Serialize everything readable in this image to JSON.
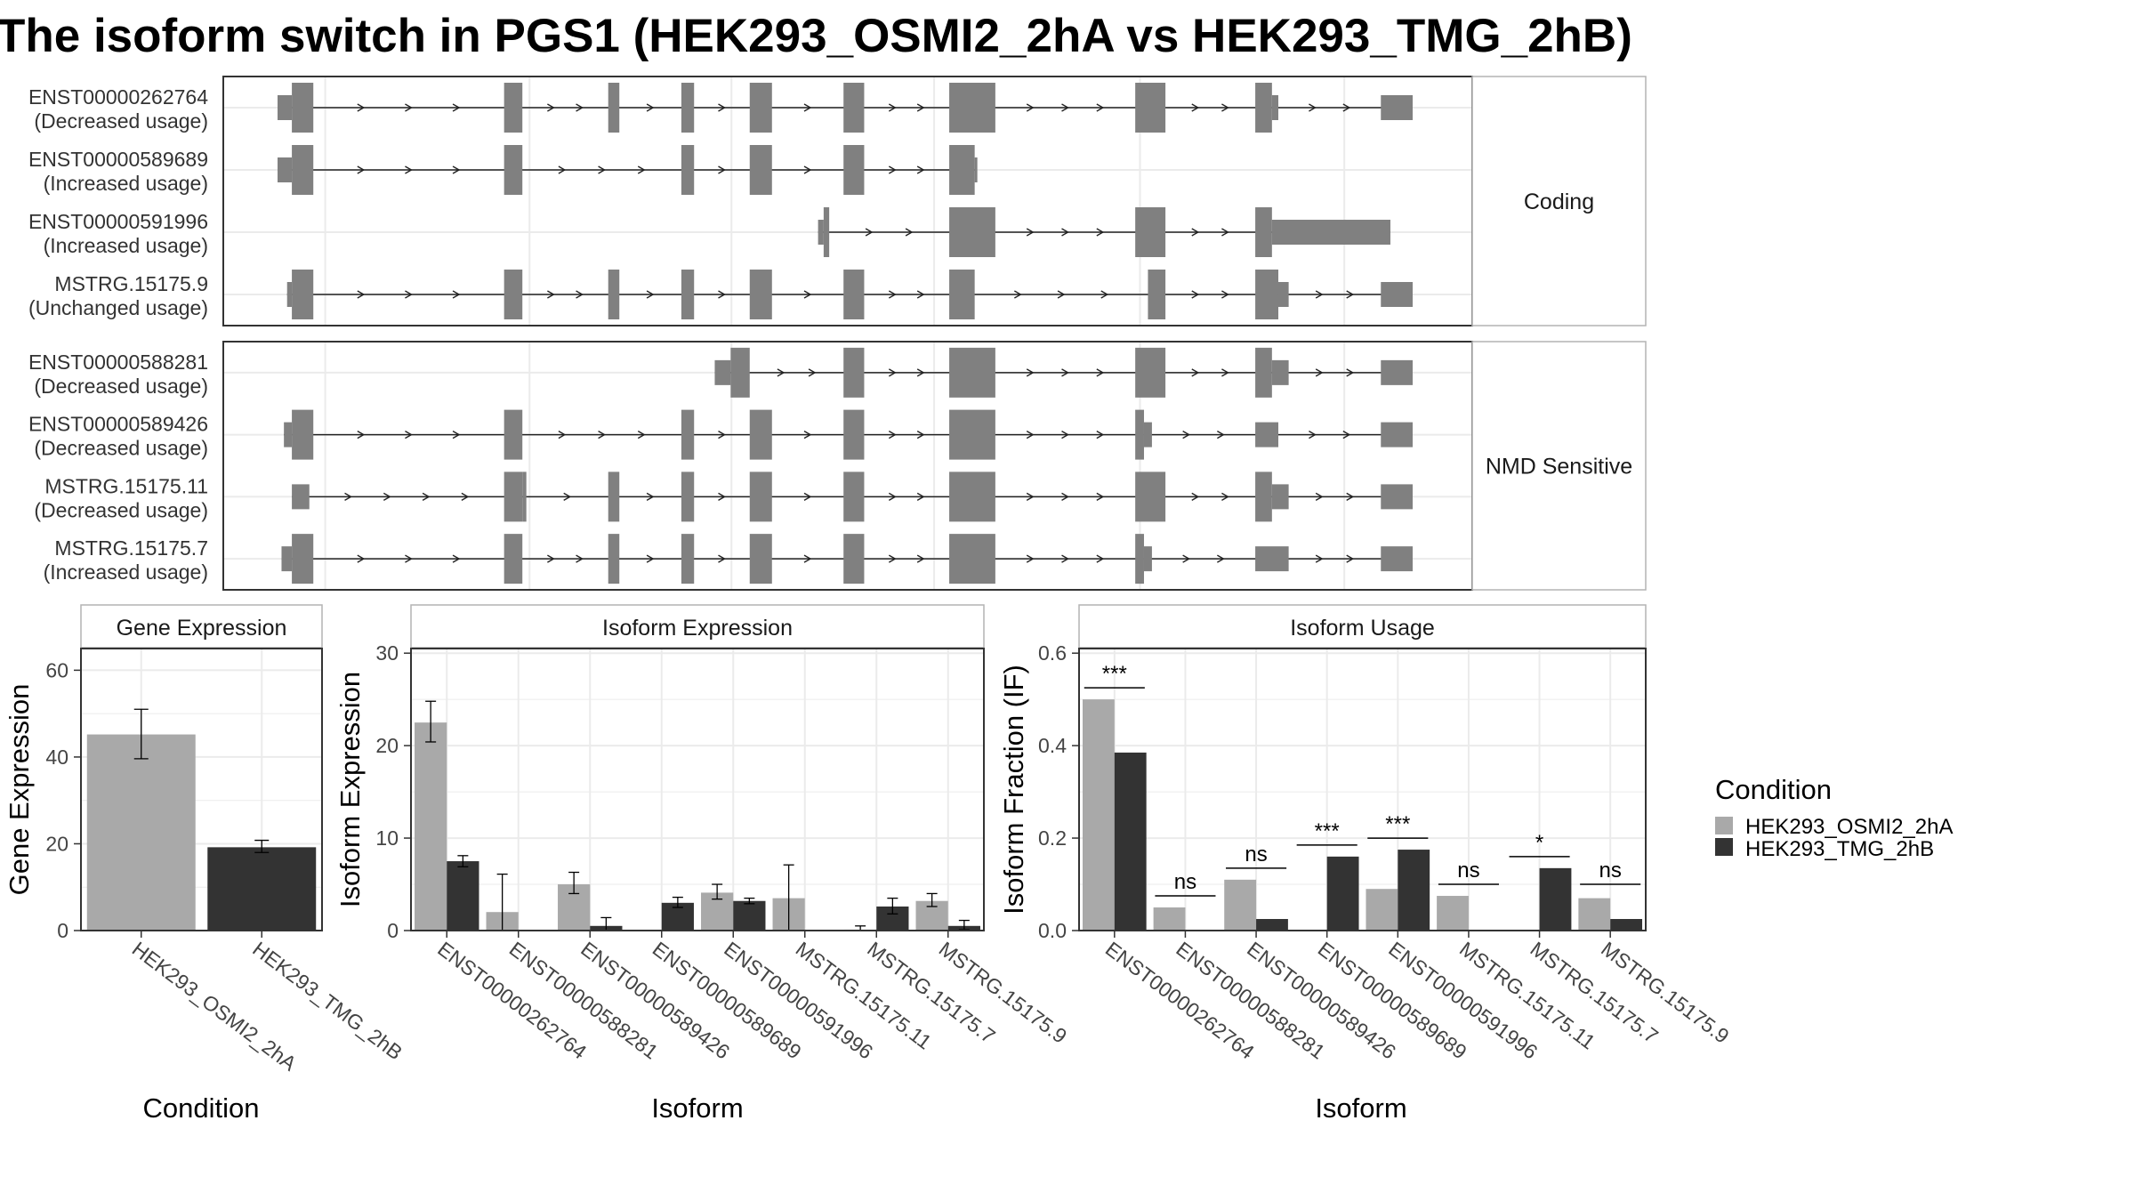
{
  "title": "The isoform switch in PGS1 (HEK293_OSMI2_2hA vs HEK293_TMG_2hB)",
  "colors": {
    "cond1": "#a9a9a9",
    "cond2": "#333333",
    "exon": "#808080",
    "grid": "#ebebeb",
    "panel_border": "#333333",
    "strip_border": "#b3b3b3"
  },
  "chart_data": [
    {
      "type": "diagram",
      "group": "Coding",
      "isoforms": [
        {
          "id": "ENST00000262764",
          "status": "(Decreased usage)",
          "exons": [
            [
              0,
              18,
              "u"
            ],
            [
              18,
              45,
              "c"
            ],
            [
              285,
              308,
              "c"
            ],
            [
              416,
              430,
              "c"
            ],
            [
              508,
              524,
              "c"
            ],
            [
              594,
              622,
              "c"
            ],
            [
              712,
              738,
              "c"
            ],
            [
              845,
              903,
              "c"
            ],
            [
              1079,
              1117,
              "c"
            ],
            [
              1230,
              1251,
              "c"
            ],
            [
              1251,
              1259,
              "u"
            ],
            [
              1388,
              1428,
              "u"
            ]
          ],
          "span": [
            0,
            1428
          ]
        },
        {
          "id": "ENST00000589689",
          "status": "(Increased usage)",
          "exons": [
            [
              0,
              18,
              "u"
            ],
            [
              18,
              45,
              "c"
            ],
            [
              285,
              308,
              "c"
            ],
            [
              508,
              524,
              "c"
            ],
            [
              594,
              622,
              "c"
            ],
            [
              712,
              738,
              "c"
            ],
            [
              845,
              877,
              "c"
            ],
            [
              877,
              880,
              "u"
            ]
          ],
          "span": [
            0,
            880
          ]
        },
        {
          "id": "ENST00000591996",
          "status": "(Increased usage)",
          "exons": [
            [
              680,
              687,
              "u"
            ],
            [
              687,
              694,
              "c"
            ],
            [
              845,
              903,
              "c"
            ],
            [
              1079,
              1117,
              "c"
            ],
            [
              1230,
              1251,
              "c"
            ],
            [
              1251,
              1400,
              "u"
            ]
          ],
          "span": [
            680,
            1400
          ]
        },
        {
          "id": "MSTRG.15175.9",
          "status": "(Unchanged usage)",
          "exons": [
            [
              12,
              18,
              "u"
            ],
            [
              18,
              45,
              "c"
            ],
            [
              285,
              308,
              "c"
            ],
            [
              416,
              430,
              "c"
            ],
            [
              508,
              524,
              "c"
            ],
            [
              594,
              622,
              "c"
            ],
            [
              712,
              738,
              "c"
            ],
            [
              845,
              877,
              "c"
            ],
            [
              1095,
              1117,
              "c"
            ],
            [
              1230,
              1259,
              "c"
            ],
            [
              1259,
              1272,
              "u"
            ],
            [
              1388,
              1428,
              "u"
            ]
          ],
          "span": [
            12,
            1428
          ]
        }
      ]
    },
    {
      "type": "diagram",
      "group": "NMD Sensitive",
      "isoforms": [
        {
          "id": "ENST00000588281",
          "status": "(Decreased usage)",
          "exons": [
            [
              550,
              570,
              "u"
            ],
            [
              570,
              594,
              "c"
            ],
            [
              712,
              738,
              "c"
            ],
            [
              845,
              903,
              "c"
            ],
            [
              1079,
              1117,
              "c"
            ],
            [
              1230,
              1251,
              "c"
            ],
            [
              1251,
              1272,
              "u"
            ],
            [
              1388,
              1428,
              "u"
            ]
          ],
          "span": [
            550,
            1428
          ]
        },
        {
          "id": "ENST00000589426",
          "status": "(Decreased usage)",
          "exons": [
            [
              8,
              18,
              "u"
            ],
            [
              18,
              45,
              "c"
            ],
            [
              285,
              308,
              "c"
            ],
            [
              508,
              524,
              "c"
            ],
            [
              594,
              622,
              "c"
            ],
            [
              712,
              738,
              "c"
            ],
            [
              845,
              903,
              "c"
            ],
            [
              1079,
              1090,
              "c"
            ],
            [
              1090,
              1100,
              "u"
            ],
            [
              1230,
              1259,
              "u"
            ],
            [
              1388,
              1428,
              "u"
            ]
          ],
          "span": [
            8,
            1428
          ]
        },
        {
          "id": "MSTRG.15175.11",
          "status": "(Decreased usage)",
          "exons": [
            [
              18,
              40,
              "u"
            ],
            [
              285,
              308,
              "c"
            ],
            [
              308,
              313,
              "c"
            ],
            [
              416,
              430,
              "c"
            ],
            [
              508,
              524,
              "c"
            ],
            [
              594,
              622,
              "c"
            ],
            [
              712,
              738,
              "c"
            ],
            [
              845,
              903,
              "c"
            ],
            [
              1079,
              1117,
              "c"
            ],
            [
              1230,
              1251,
              "c"
            ],
            [
              1251,
              1272,
              "u"
            ],
            [
              1388,
              1428,
              "u"
            ]
          ],
          "span": [
            18,
            1428
          ]
        },
        {
          "id": "MSTRG.15175.7",
          "status": "(Increased usage)",
          "exons": [
            [
              5,
              18,
              "u"
            ],
            [
              18,
              45,
              "c"
            ],
            [
              285,
              308,
              "c"
            ],
            [
              416,
              430,
              "c"
            ],
            [
              508,
              524,
              "c"
            ],
            [
              594,
              622,
              "c"
            ],
            [
              712,
              738,
              "c"
            ],
            [
              845,
              903,
              "c"
            ],
            [
              1079,
              1090,
              "c"
            ],
            [
              1090,
              1100,
              "u"
            ],
            [
              1230,
              1272,
              "u"
            ],
            [
              1388,
              1428,
              "u"
            ]
          ],
          "span": [
            5,
            1428
          ]
        }
      ]
    },
    {
      "type": "bar",
      "title": "Gene Expression",
      "xlabel": "Condition",
      "ylabel": "Gene Expression",
      "ylim": [
        0,
        65
      ],
      "yticks": [
        0,
        20,
        40,
        60
      ],
      "categories": [
        "HEK293_OSMI2_2hA",
        "HEK293_TMG_2hB"
      ],
      "values": [
        45.2,
        19.2
      ],
      "errors": [
        [
          39.6,
          51.0
        ],
        [
          18.0,
          20.8
        ]
      ]
    },
    {
      "type": "bar",
      "title": "Isoform Expression",
      "xlabel": "Isoform",
      "ylabel": "Isoform Expression",
      "ylim": [
        0,
        30.5
      ],
      "yticks": [
        0,
        10,
        20,
        30
      ],
      "categories": [
        "ENST00000262764",
        "ENST00000588281",
        "ENST00000589426",
        "ENST00000589689",
        "ENST00000591996",
        "MSTRG.15175.11",
        "MSTRG.15175.7",
        "MSTRG.15175.9"
      ],
      "series": [
        {
          "name": "HEK293_OSMI2_2hA",
          "values": [
            22.5,
            2.0,
            5.0,
            0.0,
            4.1,
            3.5,
            0.1,
            3.2
          ],
          "errors": [
            [
              20.4,
              24.8
            ],
            [
              0.0,
              6.1
            ],
            [
              4.0,
              6.3
            ],
            null,
            [
              3.4,
              5.0
            ],
            [
              0.0,
              7.1
            ],
            [
              0.0,
              0.5
            ],
            [
              2.6,
              4.0
            ]
          ]
        },
        {
          "name": "HEK293_TMG_2hB",
          "values": [
            7.5,
            0.0,
            0.5,
            3.0,
            3.2,
            0.0,
            2.6,
            0.5
          ],
          "errors": [
            [
              6.9,
              8.1
            ],
            null,
            [
              0.0,
              1.4
            ],
            [
              2.5,
              3.6
            ],
            [
              2.9,
              3.5
            ],
            null,
            [
              1.8,
              3.5
            ],
            [
              0.1,
              1.1
            ]
          ]
        }
      ]
    },
    {
      "type": "bar",
      "title": "Isoform Usage",
      "xlabel": "Isoform",
      "ylabel": "Isoform Fraction (IF)",
      "ylim": [
        0,
        0.61
      ],
      "yticks": [
        0.0,
        0.2,
        0.4,
        0.6
      ],
      "ytick_labels": [
        "0.0",
        "0.2",
        "0.4",
        "0.6"
      ],
      "categories": [
        "ENST00000262764",
        "ENST00000588281",
        "ENST00000589426",
        "ENST00000589689",
        "ENST00000591996",
        "MSTRG.15175.11",
        "MSTRG.15175.7",
        "MSTRG.15175.9"
      ],
      "series": [
        {
          "name": "HEK293_OSMI2_2hA",
          "values": [
            0.5,
            0.05,
            0.11,
            0.0,
            0.09,
            0.075,
            0.0,
            0.07
          ]
        },
        {
          "name": "HEK293_TMG_2hB",
          "values": [
            0.385,
            0.0,
            0.025,
            0.16,
            0.175,
            0.0,
            0.135,
            0.025
          ]
        }
      ],
      "significance": [
        "***",
        "ns",
        "ns",
        "***",
        "***",
        "ns",
        "*",
        "ns"
      ],
      "significance_y": [
        0.525,
        0.075,
        0.135,
        0.185,
        0.2,
        0.1,
        0.16,
        0.1
      ]
    }
  ],
  "legend": {
    "title": "Condition",
    "items": [
      {
        "label": "HEK293_OSMI2_2hA",
        "color": "#a9a9a9"
      },
      {
        "label": "HEK293_TMG_2hB",
        "color": "#333333"
      }
    ]
  }
}
